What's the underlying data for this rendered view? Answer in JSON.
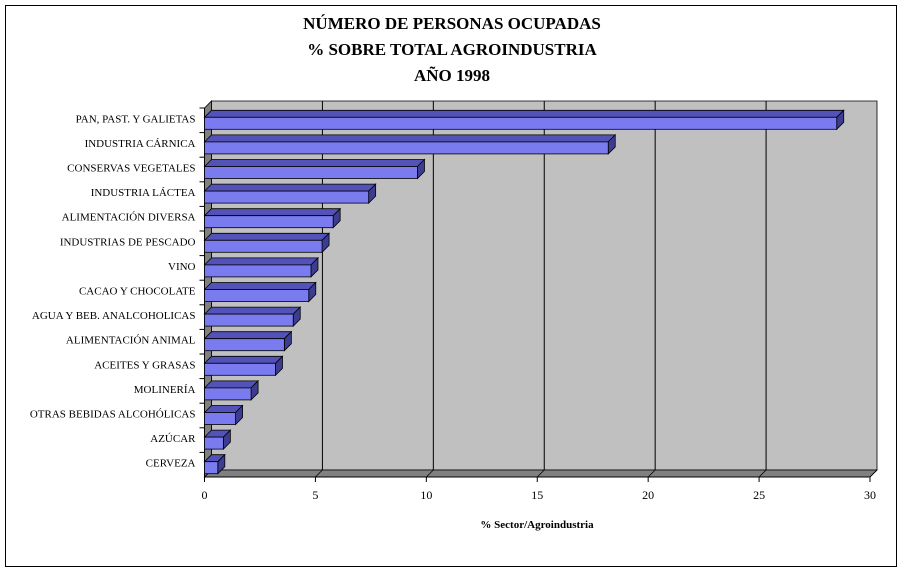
{
  "chart_data": {
    "type": "bar",
    "orientation": "horizontal",
    "style": "3d",
    "title": [
      "NÚMERO DE PERSONAS OCUPADAS",
      "% SOBRE TOTAL AGROINDUSTRIA",
      "AÑO 1998"
    ],
    "xlabel": "% Sector/Agroindustria",
    "ylabel": "",
    "xlim": [
      0,
      30
    ],
    "xticks": [
      "0",
      "5",
      "10",
      "15",
      "20",
      "25",
      "30"
    ],
    "grid": true,
    "categories": [
      "PAN, PAST. Y GALIETAS",
      "INDUSTRIA CÁRNICA",
      "CONSERVAS VEGETALES",
      "INDUSTRIA LÁCTEA",
      "ALIMENTACIÓN DIVERSA",
      "INDUSTRIAS DE PESCADO",
      "VINO",
      "CACAO Y CHOCOLATE",
      "AGUA Y BEB. ANALCOHOLICAS",
      "ALIMENTACIÓN ANIMAL",
      "ACEITES Y GRASAS",
      "MOLINERÍA",
      "OTRAS BEBIDAS ALCOHÓLICAS",
      "AZÚCAR",
      "CERVEZA"
    ],
    "values": [
      28.5,
      18.2,
      9.6,
      7.4,
      5.8,
      5.3,
      4.8,
      4.7,
      4.0,
      3.6,
      3.2,
      2.1,
      1.4,
      0.85,
      0.6
    ],
    "colors": {
      "bar_front": "#7b7bf0",
      "bar_top": "#5252b8",
      "bar_side": "#3c3c90",
      "wall": "#c0c0c0",
      "floor": "#808080"
    }
  }
}
